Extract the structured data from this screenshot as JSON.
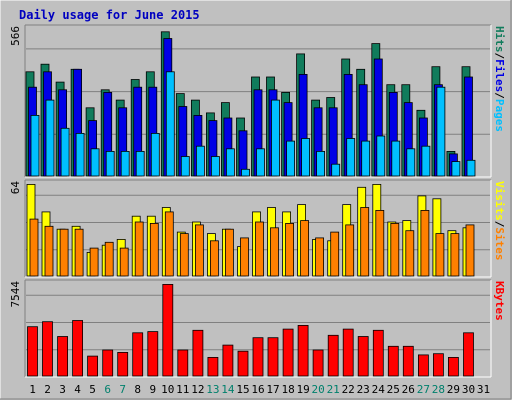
{
  "chart_data": [
    {
      "type": "bar",
      "title": "Daily usage for June 2015",
      "ylabel_parts": [
        "Pages",
        "Files",
        "Hits"
      ],
      "ylabel_sep": "/",
      "ymax_label": "566",
      "ylim": [
        0,
        566
      ],
      "categories": [
        "1",
        "2",
        "3",
        "4",
        "5",
        "6",
        "7",
        "8",
        "9",
        "10",
        "11",
        "12",
        "13",
        "14",
        "15",
        "16",
        "17",
        "18",
        "19",
        "20",
        "21",
        "22",
        "23",
        "24",
        "25",
        "26",
        "27",
        "28",
        "29",
        "30",
        "31"
      ],
      "series": [
        {
          "name": "Hits",
          "values": [
            410,
            440,
            370,
            420,
            270,
            340,
            300,
            380,
            410,
            566,
            325,
            300,
            250,
            290,
            230,
            390,
            390,
            330,
            480,
            300,
            310,
            460,
            420,
            520,
            360,
            360,
            260,
            430,
            100,
            430,
            0
          ]
        },
        {
          "name": "Files",
          "values": [
            350,
            410,
            340,
            420,
            220,
            330,
            270,
            350,
            350,
            540,
            275,
            240,
            220,
            230,
            180,
            340,
            340,
            290,
            400,
            270,
            270,
            400,
            360,
            460,
            330,
            290,
            230,
            360,
            90,
            390,
            0
          ]
        },
        {
          "name": "Pages",
          "values": [
            240,
            300,
            190,
            170,
            110,
            100,
            100,
            100,
            170,
            410,
            80,
            120,
            80,
            110,
            30,
            110,
            300,
            140,
            150,
            100,
            50,
            150,
            140,
            160,
            140,
            110,
            120,
            350,
            60,
            65,
            0
          ]
        }
      ]
    },
    {
      "type": "bar",
      "ylabel_parts": [
        "Sites",
        "Visits"
      ],
      "ylabel_sep": "/",
      "ymax_label": "64",
      "ylim": [
        0,
        64
      ],
      "categories": [
        "1",
        "2",
        "3",
        "4",
        "5",
        "6",
        "7",
        "8",
        "9",
        "10",
        "11",
        "12",
        "13",
        "14",
        "15",
        "16",
        "17",
        "18",
        "19",
        "20",
        "21",
        "22",
        "23",
        "24",
        "25",
        "26",
        "27",
        "28",
        "29",
        "30",
        "31"
      ],
      "series": [
        {
          "name": "Visits",
          "values": [
            64,
            45,
            33,
            35,
            17,
            22,
            26,
            42,
            42,
            48,
            31,
            38,
            30,
            33,
            21,
            45,
            48,
            45,
            50,
            26,
            25,
            50,
            62,
            64,
            38,
            39,
            56,
            54,
            32,
            34,
            0
          ]
        },
        {
          "name": "Sites",
          "values": [
            40,
            35,
            33,
            33,
            20,
            24,
            20,
            38,
            37,
            45,
            30,
            36,
            25,
            33,
            27,
            38,
            34,
            37,
            39,
            27,
            31,
            36,
            48,
            46,
            37,
            32,
            46,
            30,
            30,
            36,
            0
          ]
        }
      ]
    },
    {
      "type": "bar",
      "ylabel_parts": [
        "KBytes"
      ],
      "ylabel_sep": "",
      "ymax_label": "7544",
      "ylim": [
        0,
        7544
      ],
      "categories": [
        "1",
        "2",
        "3",
        "4",
        "5",
        "6",
        "7",
        "8",
        "9",
        "10",
        "11",
        "12",
        "13",
        "14",
        "15",
        "16",
        "17",
        "18",
        "19",
        "20",
        "21",
        "22",
        "23",
        "24",
        "25",
        "26",
        "27",
        "28",
        "29",
        "30",
        "31"
      ],
      "series": [
        {
          "name": "KBytes",
          "values": [
            4100,
            4500,
            3300,
            4600,
            1700,
            2200,
            2000,
            3600,
            3700,
            7544,
            2200,
            3800,
            1600,
            2600,
            2100,
            3200,
            3200,
            3900,
            4200,
            2200,
            3400,
            3900,
            3300,
            3800,
            2500,
            2500,
            1800,
            1900,
            1600,
            3600,
            0
          ]
        }
      ]
    }
  ],
  "colors": {
    "Hits": "#117c5c",
    "Files": "#0000e6",
    "Pages": "#00c0ff",
    "Visits": "#ffff00",
    "Sites": "#ff8000",
    "KBytes": "#ff0000",
    "Title": "#0000c0",
    "weekday": "#000000",
    "weekend": "#00806c",
    "panel": "#c0c0c0",
    "grid": "#808080"
  },
  "weekend_days": [
    "6",
    "7",
    "13",
    "14",
    "20",
    "21",
    "27",
    "28"
  ]
}
